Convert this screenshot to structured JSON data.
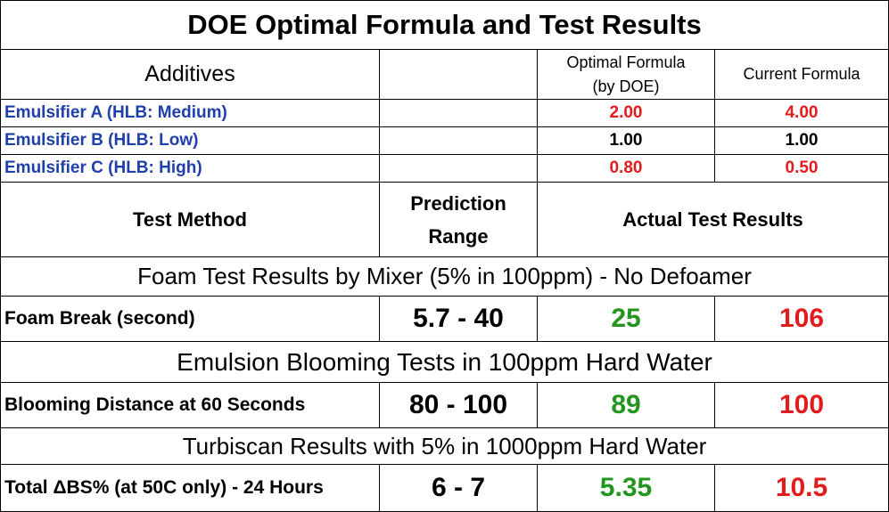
{
  "colors": {
    "emulsifier_label": "#1f3faa",
    "red_value": "#e21c1c",
    "green_value": "#22961e",
    "text": "#000000"
  },
  "title": "DOE Optimal Formula and Test Results",
  "additives_header": {
    "label": "Additives",
    "optimal_line1": "Optimal Formula",
    "optimal_line2": "(by DOE)",
    "current": "Current Formula"
  },
  "emulsifiers": [
    {
      "name": "Emulsifier A (HLB: Medium)",
      "optimal": "2.00",
      "current": "4.00"
    },
    {
      "name": "Emulsifier B (HLB: Low)",
      "optimal": "1.00",
      "current": "1.00"
    },
    {
      "name": "Emulsifier C (HLB: High)",
      "optimal": "0.80",
      "current": "0.50"
    }
  ],
  "test_header": {
    "method": "Test Method",
    "prediction_line1": "Prediction",
    "prediction_line2": "Range",
    "actual": "Actual Test Results"
  },
  "tests": [
    {
      "section": "Foam Test Results by Mixer (5% in 100ppm) - No Defoamer",
      "name": "Foam Break (second)",
      "range": "5.7 - 40",
      "optimal": "25",
      "current": "106"
    },
    {
      "section": "Emulsion Blooming Tests  in 100ppm Hard Water",
      "name": "Blooming Distance at 60 Seconds",
      "range": "80 - 100",
      "optimal": "89",
      "current": "100"
    },
    {
      "section": "Turbiscan Results with 5% in 1000ppm Hard Water",
      "name": "Total ΔBS% (at 50C only) - 24 Hours",
      "range": "6 - 7",
      "optimal": "5.35",
      "current": "10.5"
    }
  ]
}
